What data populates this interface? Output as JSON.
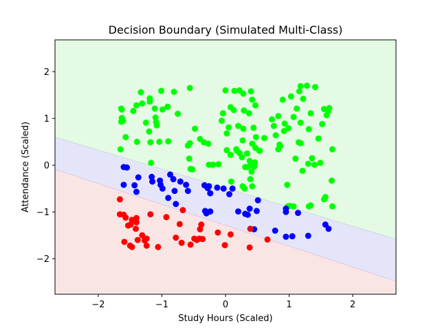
{
  "chart_data": {
    "type": "scatter",
    "title": "Decision Boundary (Simulated Multi-Class)",
    "xlabel": "Study Hours (Scaled)",
    "ylabel": "Attendance (Scaled)",
    "xlim": [
      -2.68,
      2.68
    ],
    "ylim": [
      -2.76,
      2.68
    ],
    "xticks": [
      -2,
      -1,
      0,
      1,
      2
    ],
    "yticks": [
      -2,
      -1,
      0,
      1,
      2
    ],
    "grid": false,
    "regions": [
      {
        "class": "green",
        "color": "#e5fae5"
      },
      {
        "class": "blue",
        "color": "#e5e5fa"
      },
      {
        "class": "red",
        "color": "#fae5e5"
      }
    ],
    "boundaries": [
      {
        "between": [
          "green",
          "blue"
        ],
        "points": [
          [
            -2.68,
            0.6
          ],
          [
            2.68,
            -1.58
          ]
        ]
      },
      {
        "between": [
          "blue",
          "red"
        ],
        "points": [
          [
            -2.68,
            -0.09
          ],
          [
            2.68,
            -2.48
          ]
        ]
      }
    ],
    "series": [
      {
        "color": "#00ff00",
        "points": [
          [
            -1.63,
            1.19
          ],
          [
            -1.64,
            1.21
          ],
          [
            -1.63,
            1.01
          ],
          [
            -1.64,
            0.93
          ],
          [
            -1.61,
            0.95
          ],
          [
            -1.57,
            0.6
          ],
          [
            -1.65,
            0.34
          ],
          [
            -1.45,
            1.16
          ],
          [
            -1.4,
            1.28
          ],
          [
            -1.33,
            1.56
          ],
          [
            -1.31,
            1.32
          ],
          [
            -1.19,
            1.43
          ],
          [
            -1.19,
            1.36
          ],
          [
            -1.11,
            1.21
          ],
          [
            -1.1,
            1.02
          ],
          [
            -1.08,
            0.85
          ],
          [
            -1.2,
            0.72
          ],
          [
            -1.25,
            0.91
          ],
          [
            -1.09,
            0.92
          ],
          [
            -1.01,
            1.59
          ],
          [
            -0.99,
            1.19
          ],
          [
            -0.91,
            1.25
          ],
          [
            -0.81,
            1.57
          ],
          [
            -0.75,
            1.1
          ],
          [
            -1.39,
            0.5
          ],
          [
            -1.18,
            0.49
          ],
          [
            -1.04,
            0.5
          ],
          [
            -0.9,
            0.51
          ],
          [
            -0.56,
            1.65
          ],
          [
            -0.48,
            0.78
          ],
          [
            -0.56,
            0.47
          ],
          [
            -0.59,
            0.42
          ],
          [
            -0.4,
            0.56
          ],
          [
            -0.34,
            0.49
          ],
          [
            -0.27,
            0.46
          ],
          [
            -0.57,
            0.14
          ],
          [
            -0.52,
            -0.09
          ],
          [
            -0.11,
            0.02
          ],
          [
            -0.2,
            0.01
          ],
          [
            -0.55,
            -0.08
          ],
          [
            -1.17,
            0.05
          ],
          [
            -0.26,
            0.01
          ],
          [
            0.0,
            1.6
          ],
          [
            0.14,
            1.59
          ],
          [
            0.22,
            1.6
          ],
          [
            0.28,
            1.53
          ],
          [
            -0.04,
            1.11
          ],
          [
            0.08,
            1.24
          ],
          [
            0.13,
            1.18
          ],
          [
            0.29,
            1.17
          ],
          [
            0.37,
            1.11
          ],
          [
            0.42,
            1.4
          ],
          [
            0.4,
            1.58
          ],
          [
            0.47,
            1.28
          ],
          [
            -0.06,
            0.95
          ],
          [
            0.05,
            0.81
          ],
          [
            0.2,
            0.84
          ],
          [
            0.28,
            0.78
          ],
          [
            0.44,
            0.8
          ],
          [
            0.48,
            0.6
          ],
          [
            0.42,
            0.46
          ],
          [
            0.47,
            0.37
          ],
          [
            0.54,
            0.31
          ],
          [
            0.02,
            0.68
          ],
          [
            0.18,
            0.31
          ],
          [
            0.22,
            0.26
          ],
          [
            0.17,
            0.34
          ],
          [
            0.02,
            0.32
          ],
          [
            0.08,
            0.22
          ],
          [
            0.26,
            0.17
          ],
          [
            0.31,
            -0.04
          ],
          [
            0.38,
            0.09
          ],
          [
            0.46,
            0.06
          ],
          [
            0.45,
            -0.03
          ],
          [
            0.4,
            0.0
          ],
          [
            0.34,
            0.25
          ],
          [
            0.27,
            0.53
          ],
          [
            0.53,
            0.31
          ],
          [
            0.61,
            0.58
          ],
          [
            0.73,
            0.98
          ],
          [
            0.79,
            0.64
          ],
          [
            0.83,
            0.34
          ],
          [
            0.85,
            0.44
          ],
          [
            0.86,
            0.41
          ],
          [
            0.83,
            1.05
          ],
          [
            0.93,
            0.89
          ],
          [
            0.99,
            0.79
          ],
          [
            0.92,
            0.73
          ],
          [
            0.76,
            0.84
          ],
          [
            0.9,
            1.4
          ],
          [
            1.03,
            1.47
          ],
          [
            1.12,
            1.21
          ],
          [
            1.16,
            1.58
          ],
          [
            1.18,
            1.69
          ],
          [
            1.22,
            1.42
          ],
          [
            1.28,
            1.7
          ],
          [
            1.41,
            1.67
          ],
          [
            1.07,
            1.03
          ],
          [
            1.18,
            0.91
          ],
          [
            1.31,
            0.77
          ],
          [
            1.34,
            1.11
          ],
          [
            1.55,
            1.2
          ],
          [
            1.52,
            0.88
          ],
          [
            1.62,
            1.16
          ],
          [
            1.59,
            1.07
          ],
          [
            1.63,
            1.22
          ],
          [
            1.15,
            0.49
          ],
          [
            1.18,
            0.47
          ],
          [
            1.46,
            0.57
          ],
          [
            1.68,
            0.34
          ],
          [
            1.1,
            0.14
          ],
          [
            1.3,
            0.03
          ],
          [
            1.36,
            0.15
          ],
          [
            1.4,
            0.01
          ],
          [
            1.49,
            0.05
          ],
          [
            1.21,
            -0.12
          ],
          [
            1.57,
            -0.68
          ],
          [
            1.55,
            -0.73
          ],
          [
            1.68,
            -0.88
          ],
          [
            1.67,
            -0.33
          ],
          [
            1.31,
            -0.88
          ],
          [
            1.34,
            -0.86
          ],
          [
            1.01,
            -0.87
          ],
          [
            1.07,
            -0.88
          ],
          [
            0.98,
            -0.88
          ],
          [
            0.97,
            -0.42
          ],
          [
            0.27,
            -0.45
          ],
          [
            0.3,
            -0.5
          ],
          [
            0.42,
            -0.45
          ],
          [
            0.41,
            -0.14
          ],
          [
            0.39,
            -0.3
          ],
          [
            0.09,
            -0.35
          ],
          [
            0.35,
            -0.04
          ]
        ]
      },
      {
        "color": "#0000ff",
        "points": [
          [
            -1.6,
            -0.04
          ],
          [
            -1.55,
            -0.05
          ],
          [
            -1.6,
            -0.42
          ],
          [
            -1.43,
            -0.43
          ],
          [
            -1.37,
            -0.26
          ],
          [
            -1.4,
            -0.57
          ],
          [
            -1.16,
            -0.25
          ],
          [
            -1.15,
            -0.35
          ],
          [
            -1.03,
            -0.33
          ],
          [
            -1.02,
            -0.42
          ],
          [
            -0.99,
            -0.5
          ],
          [
            -0.87,
            -0.2
          ],
          [
            -0.82,
            -0.3
          ],
          [
            -0.71,
            -0.35
          ],
          [
            -0.8,
            -0.55
          ],
          [
            -0.9,
            -0.7
          ],
          [
            -0.62,
            -0.42
          ],
          [
            -0.59,
            -0.55
          ],
          [
            -0.78,
            -0.83
          ],
          [
            -0.33,
            -0.43
          ],
          [
            -0.26,
            -0.45
          ],
          [
            -0.28,
            -0.49
          ],
          [
            -0.24,
            -0.6
          ],
          [
            -0.13,
            -0.48
          ],
          [
            -0.03,
            -0.5
          ],
          [
            -0.32,
            -0.98
          ],
          [
            -0.3,
            -1.03
          ],
          [
            -0.24,
            -0.99
          ],
          [
            0.06,
            -0.62
          ],
          [
            0.11,
            -0.5
          ],
          [
            0.2,
            -0.99
          ],
          [
            0.31,
            -1.04
          ],
          [
            0.35,
            -1.06
          ],
          [
            0.38,
            -0.93
          ],
          [
            0.45,
            -1.37
          ],
          [
            0.49,
            -0.98
          ],
          [
            0.51,
            -0.75
          ],
          [
            0.78,
            -1.4
          ],
          [
            0.95,
            -0.93
          ],
          [
            0.95,
            -1.0
          ],
          [
            0.95,
            -1.53
          ],
          [
            1.05,
            -1.52
          ],
          [
            1.14,
            -1.02
          ],
          [
            1.3,
            -1.51
          ],
          [
            1.57,
            -1.27
          ],
          [
            1.62,
            -1.36
          ]
        ]
      },
      {
        "color": "#ff0000",
        "points": [
          [
            -1.66,
            -0.73
          ],
          [
            -1.66,
            -1.05
          ],
          [
            -1.6,
            -1.06
          ],
          [
            -1.57,
            -1.12
          ],
          [
            -1.53,
            -1.29
          ],
          [
            -1.49,
            -1.27
          ],
          [
            -1.47,
            -1.17
          ],
          [
            -1.4,
            -1.13
          ],
          [
            -1.4,
            -1.22
          ],
          [
            -1.41,
            -1.36
          ],
          [
            -1.5,
            -1.72
          ],
          [
            -1.47,
            -1.75
          ],
          [
            -1.59,
            -1.64
          ],
          [
            -1.38,
            -1.6
          ],
          [
            -1.31,
            -1.5
          ],
          [
            -1.27,
            -1.61
          ],
          [
            -1.24,
            -1.72
          ],
          [
            -1.18,
            -1.05
          ],
          [
            -1.24,
            -1.57
          ],
          [
            -1.06,
            -1.75
          ],
          [
            -0.93,
            -1.11
          ],
          [
            -0.78,
            -1.55
          ],
          [
            -0.69,
            -1.66
          ],
          [
            -0.72,
            -1.26
          ],
          [
            -0.67,
            -0.96
          ],
          [
            -0.55,
            -1.7
          ],
          [
            -0.45,
            -1.6
          ],
          [
            -0.41,
            -1.57
          ],
          [
            -0.49,
            -1.57
          ],
          [
            -0.4,
            -1.37
          ],
          [
            -0.38,
            -1.27
          ],
          [
            -0.36,
            -1.58
          ],
          [
            -0.12,
            -1.44
          ],
          [
            -0.01,
            -1.71
          ],
          [
            0.08,
            -1.48
          ],
          [
            0.38,
            -1.76
          ],
          [
            0.39,
            -1.36
          ],
          [
            0.66,
            -1.59
          ]
        ]
      }
    ]
  }
}
